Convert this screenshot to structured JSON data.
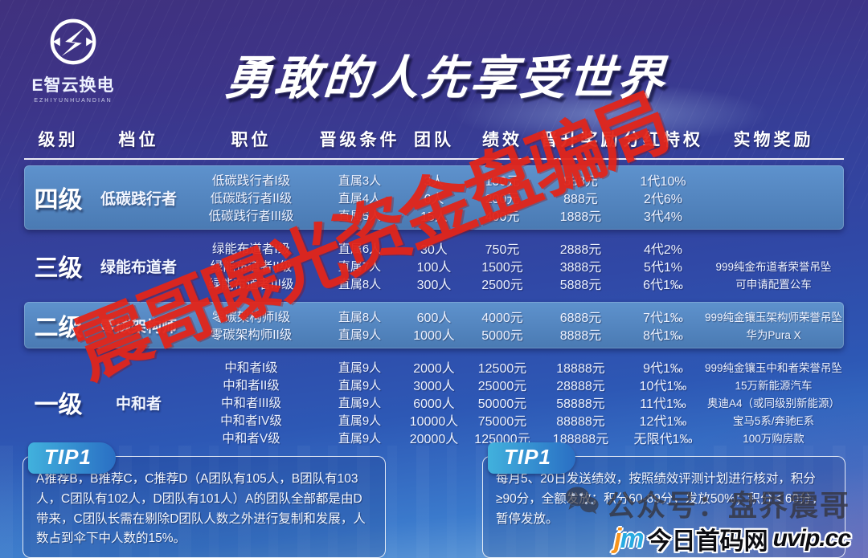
{
  "logo": {
    "name": "E智云换电",
    "sub": "EZHIYUNHUANDIAN"
  },
  "title": "勇敢的人先享受世界",
  "watermark": "震哥曝光资金盘骗局",
  "colors": {
    "watermark_red": "#e2251a",
    "highlight_band_blue": "#4e80bc",
    "background_purple": "#40317e",
    "background_blue": "#2d58b5",
    "tip_label_gradient": [
      "#41b1dd",
      "#2a6fc4"
    ],
    "jm_orange": "#f7941d",
    "jm_blue": "#29abe2"
  },
  "table": {
    "headers": [
      "级别",
      "档位",
      "职位",
      "晋级条件",
      "团队",
      "绩效",
      "晋升奖励",
      "分红特权",
      "实物奖励"
    ],
    "header_keys": [
      "level",
      "tier",
      "position",
      "condition",
      "team",
      "performance",
      "promotion-bonus",
      "dividend-privilege",
      "physical-reward"
    ],
    "groups": [
      {
        "level": "四级",
        "tier": "低碳践行者",
        "highlight": true,
        "rows": [
          {
            "position": "低碳践行者I级",
            "condition": "直属3人",
            "team": "3人",
            "performance": "100元",
            "bonus": "588元",
            "dividend": "1代10%",
            "reward": ""
          },
          {
            "position": "低碳践行者II级",
            "condition": "直属4人",
            "team": "6人",
            "performance": "200元",
            "bonus": "888元",
            "dividend": "2代6%",
            "reward": ""
          },
          {
            "position": "低碳践行者III级",
            "condition": "直属5人",
            "team": "15人",
            "performance": "400元",
            "bonus": "1888元",
            "dividend": "3代4%",
            "reward": ""
          }
        ]
      },
      {
        "level": "三级",
        "tier": "绿能布道者",
        "highlight": false,
        "rows": [
          {
            "position": "绿能布道者I级",
            "condition": "直属6人",
            "team": "30人",
            "performance": "750元",
            "bonus": "2888元",
            "dividend": "4代2%",
            "reward": ""
          },
          {
            "position": "绿能布道者II级",
            "condition": "直属7人",
            "team": "100人",
            "performance": "1500元",
            "bonus": "3888元",
            "dividend": "5代1%",
            "reward": "999纯金布道者荣誉吊坠"
          },
          {
            "position": "绿能布道者III级",
            "condition": "直属8人",
            "team": "300人",
            "performance": "2500元",
            "bonus": "5888元",
            "dividend": "6代1‰",
            "reward": "可申请配置公车"
          }
        ]
      },
      {
        "level": "二级",
        "tier": "零碳架构师",
        "highlight": true,
        "rows": [
          {
            "position": "零碳架构师I级",
            "condition": "直属8人",
            "team": "600人",
            "performance": "4000元",
            "bonus": "6888元",
            "dividend": "7代1‰",
            "reward": "999纯金镶玉架构师荣誉吊坠"
          },
          {
            "position": "零碳架构师II级",
            "condition": "直属9人",
            "team": "1000人",
            "performance": "5000元",
            "bonus": "8888元",
            "dividend": "8代1‰",
            "reward": "华为Pura X"
          }
        ]
      },
      {
        "level": "一级",
        "tier": "中和者",
        "highlight": false,
        "rows": [
          {
            "position": "中和者I级",
            "condition": "直属9人",
            "team": "2000人",
            "performance": "12500元",
            "bonus": "18888元",
            "dividend": "9代1‰",
            "reward": "999纯金镶玉中和者荣誉吊坠"
          },
          {
            "position": "中和者II级",
            "condition": "直属9人",
            "team": "3000人",
            "performance": "25000元",
            "bonus": "28888元",
            "dividend": "10代1‰",
            "reward": "15万新能源汽车"
          },
          {
            "position": "中和者III级",
            "condition": "直属9人",
            "team": "6000人",
            "performance": "50000元",
            "bonus": "58888元",
            "dividend": "11代1‰",
            "reward": "奥迪A4（或同级别新能源）"
          },
          {
            "position": "中和者IV级",
            "condition": "直属9人",
            "team": "10000人",
            "performance": "75000元",
            "bonus": "88888元",
            "dividend": "12代1‰",
            "reward": "宝马5系/奔驰E系"
          },
          {
            "position": "中和者V级",
            "condition": "直属9人",
            "team": "20000人",
            "performance": "125000元",
            "bonus": "188888元",
            "dividend": "无限代1‰",
            "reward": "100万购房款"
          }
        ]
      }
    ]
  },
  "tips": [
    {
      "label": "TIP1",
      "text": "A推荐B，B推荐C，C推荐D（A团队有105人，B团队有103人，C团队有102人，D团队有101人）A的团队全部都是由D带来，C团队长需在剔除D团队人数之外进行复制和发展，人数占到伞下中人数的15%。"
    },
    {
      "label": "TIP1",
      "text": "每月5、20日发送绩效，按照绩效评测计划进行核对，积分≥90分，全额发放；积分60-89分，发放50%；积分＜60分，暂停发放。"
    }
  ],
  "footer": {
    "wechat_label": "公众号：盘界震哥",
    "jm_j": "j",
    "jm_m": "m",
    "site_label": "今日首码网",
    "site_url": "uvip.cc"
  }
}
